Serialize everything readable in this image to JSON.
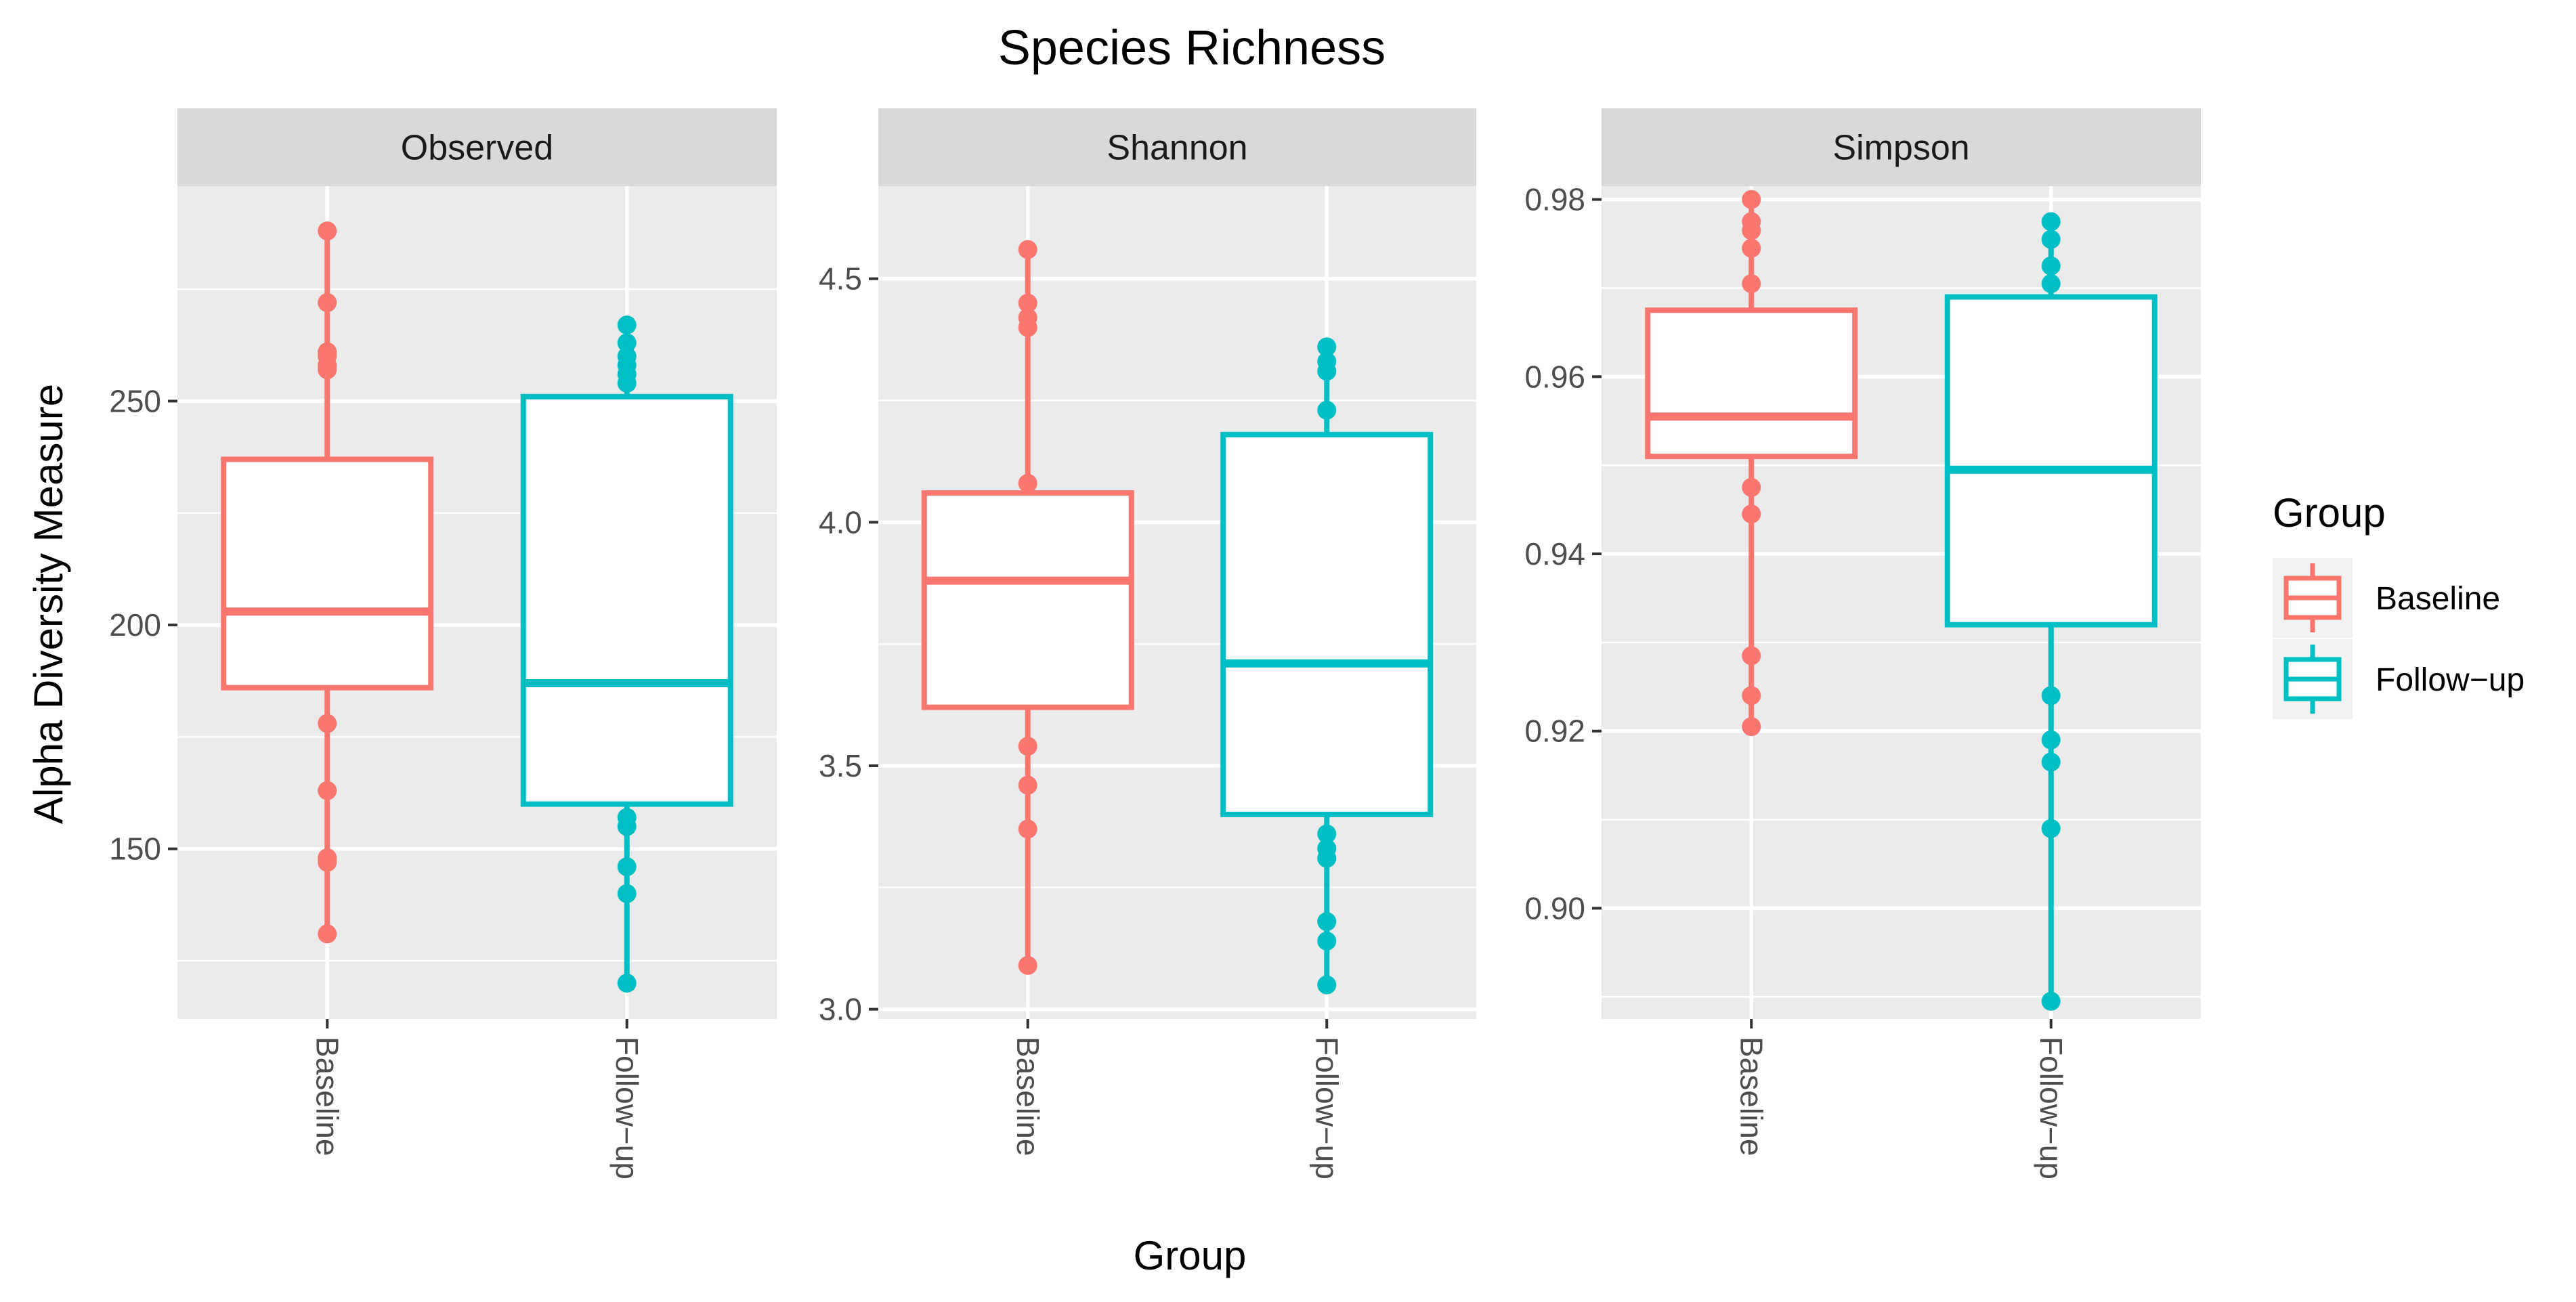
{
  "chart_data": {
    "type": "box",
    "title": "Species Richness",
    "xlabel": "Group",
    "ylabel": "Alpha Diversity Measure",
    "categories": [
      "Baseline",
      "Follow−up"
    ],
    "legend": {
      "title": "Group",
      "placement": "right",
      "entries": [
        {
          "label": "Baseline",
          "color": "#F8766D"
        },
        {
          "label": "Follow−up",
          "color": "#00BFC4"
        }
      ]
    },
    "panels": [
      {
        "name": "Observed",
        "ylim": [
          112,
          298
        ],
        "yticks": [
          150,
          200,
          250
        ],
        "yticks_minor": [
          125,
          175,
          225,
          275
        ],
        "boxes": [
          {
            "group": "Baseline",
            "whisker_low": 131,
            "q1": 186,
            "median": 203,
            "q3": 237,
            "whisker_high": 288,
            "points": [
              288,
              272,
              261,
              260,
              258,
              257,
              178,
              163,
              148,
              147,
              131
            ]
          },
          {
            "group": "Follow−up",
            "whisker_low": 120,
            "q1": 160,
            "median": 187,
            "q3": 251,
            "whisker_high": 267,
            "points": [
              267,
              263,
              260,
              258,
              256,
              254,
              157,
              155,
              146,
              140,
              120
            ]
          }
        ]
      },
      {
        "name": "Shannon",
        "ylim": [
          2.98,
          4.69
        ],
        "yticks": [
          3.0,
          3.5,
          4.0,
          4.5
        ],
        "yticks_minor": [
          3.25,
          3.75,
          4.25
        ],
        "boxes": [
          {
            "group": "Baseline",
            "whisker_low": 3.09,
            "q1": 3.62,
            "median": 3.88,
            "q3": 4.06,
            "whisker_high": 4.56,
            "points": [
              4.56,
              4.45,
              4.42,
              4.4,
              4.08,
              3.54,
              3.46,
              3.37,
              3.09
            ]
          },
          {
            "group": "Follow−up",
            "whisker_low": 3.05,
            "q1": 3.4,
            "median": 3.71,
            "q3": 4.18,
            "whisker_high": 4.36,
            "points": [
              4.36,
              4.33,
              4.31,
              4.23,
              3.36,
              3.33,
              3.31,
              3.18,
              3.14,
              3.05
            ]
          }
        ]
      },
      {
        "name": "Simpson",
        "ylim": [
          0.8875,
          0.9815
        ],
        "yticks": [
          0.9,
          0.92,
          0.94,
          0.96,
          0.98
        ],
        "yticks_minor": [
          0.89,
          0.91,
          0.93,
          0.95,
          0.97
        ],
        "boxes": [
          {
            "group": "Baseline",
            "whisker_low": 0.9205,
            "q1": 0.951,
            "median": 0.9555,
            "q3": 0.9675,
            "whisker_high": 0.98,
            "points": [
              0.98,
              0.9775,
              0.9765,
              0.9745,
              0.9705,
              0.9475,
              0.9445,
              0.9285,
              0.924,
              0.9205
            ]
          },
          {
            "group": "Follow−up",
            "whisker_low": 0.8895,
            "q1": 0.932,
            "median": 0.9495,
            "q3": 0.969,
            "whisker_high": 0.9775,
            "points": [
              0.9775,
              0.9755,
              0.9725,
              0.9705,
              0.924,
              0.919,
              0.9165,
              0.909,
              0.8895
            ]
          }
        ]
      }
    ]
  },
  "colors": {
    "baseline": "#F8766D",
    "followup": "#00BFC4",
    "panel_bg": "#EBEBEB",
    "strip_bg": "#D9D9D9",
    "grid": "#FFFFFF"
  }
}
